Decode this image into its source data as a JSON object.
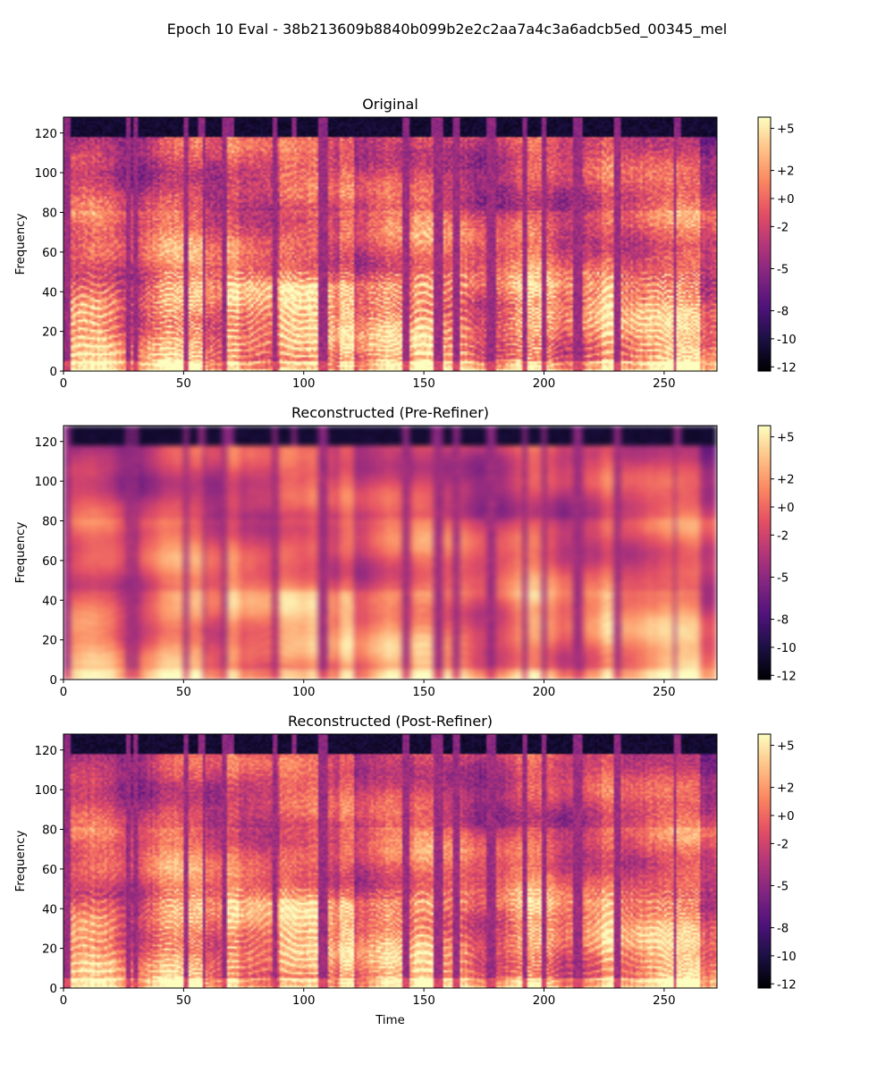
{
  "suptitle": "Epoch 10 Eval - 38b213609b8840b099b2e2c2aa7a4c3a6adcb5ed_00345_mel",
  "colormap": "magma",
  "colormap_stops": [
    "#000004",
    "#1c1044",
    "#4f127b",
    "#812581",
    "#b5367a",
    "#e55064",
    "#fb8761",
    "#fec287",
    "#fcfdbf"
  ],
  "chart_data": [
    {
      "type": "heatmap",
      "title": "Original",
      "xlabel": "",
      "ylabel": "Frequency",
      "xlim": [
        0,
        272
      ],
      "ylim": [
        0,
        128
      ],
      "xticks": [
        "0",
        "50",
        "100",
        "150",
        "200",
        "250"
      ],
      "xtick_values": [
        0,
        50,
        100,
        150,
        200,
        250
      ],
      "yticks": [
        "0",
        "20",
        "40",
        "60",
        "80",
        "100",
        "120"
      ],
      "ytick_values": [
        0,
        20,
        40,
        60,
        80,
        100,
        120
      ],
      "clim": [
        -12.3,
        5.8
      ],
      "colorbar_ticks": [
        "+5",
        "+2",
        "+0",
        "-2",
        "-5",
        "-8",
        "-10",
        "-12"
      ],
      "colorbar_tick_values": [
        5,
        2,
        0,
        -2,
        -5,
        -8,
        -10,
        -12
      ],
      "detail": "sharp"
    },
    {
      "type": "heatmap",
      "title": "Reconstructed (Pre-Refiner)",
      "xlabel": "",
      "ylabel": "Frequency",
      "xlim": [
        0,
        272
      ],
      "ylim": [
        0,
        128
      ],
      "xticks": [
        "0",
        "50",
        "100",
        "150",
        "200",
        "250"
      ],
      "xtick_values": [
        0,
        50,
        100,
        150,
        200,
        250
      ],
      "yticks": [
        "0",
        "20",
        "40",
        "60",
        "80",
        "100",
        "120"
      ],
      "ytick_values": [
        0,
        20,
        40,
        60,
        80,
        100,
        120
      ],
      "clim": [
        -12.3,
        5.8
      ],
      "colorbar_ticks": [
        "+5",
        "+2",
        "+0",
        "-2",
        "-5",
        "-8",
        "-10",
        "-12"
      ],
      "colorbar_tick_values": [
        5,
        2,
        0,
        -2,
        -5,
        -8,
        -10,
        -12
      ],
      "detail": "blurred"
    },
    {
      "type": "heatmap",
      "title": "Reconstructed (Post-Refiner)",
      "xlabel": "Time",
      "ylabel": "Frequency",
      "xlim": [
        0,
        272
      ],
      "ylim": [
        0,
        128
      ],
      "xticks": [
        "0",
        "50",
        "100",
        "150",
        "200",
        "250"
      ],
      "xtick_values": [
        0,
        50,
        100,
        150,
        200,
        250
      ],
      "yticks": [
        "0",
        "20",
        "40",
        "60",
        "80",
        "100",
        "120"
      ],
      "ytick_values": [
        0,
        20,
        40,
        60,
        80,
        100,
        120
      ],
      "clim": [
        -12.3,
        5.8
      ],
      "colorbar_ticks": [
        "+5",
        "+2",
        "+0",
        "-2",
        "-5",
        "-8",
        "-10",
        "-12"
      ],
      "colorbar_tick_values": [
        5,
        2,
        0,
        -2,
        -5,
        -8,
        -10,
        -12
      ],
      "detail": "medium"
    }
  ]
}
